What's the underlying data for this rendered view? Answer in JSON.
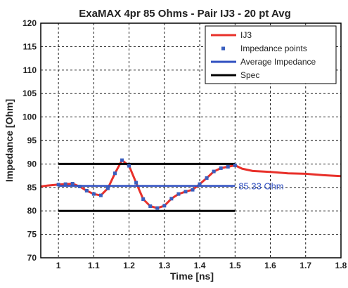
{
  "chart_data": {
    "type": "line",
    "title": "ExaMAX 4pr 85 Ohms  - Pair IJ3 - 20 pt Avg",
    "xlabel": "Time [ns]",
    "ylabel": "Impedance [Ohm]",
    "xlim": [
      0.95,
      1.8
    ],
    "ylim": [
      70,
      120
    ],
    "xticks": [
      "1",
      "1.1",
      "1.2",
      "1.3",
      "1.4",
      "1.5",
      "1.6",
      "1.7",
      "1.8"
    ],
    "yticks": [
      "70",
      "75",
      "80",
      "85",
      "90",
      "95",
      "100",
      "105",
      "110",
      "115",
      "120"
    ],
    "grid": true,
    "legend_position": "top-right",
    "legend": [
      "IJ3",
      "Impedance points",
      "Average Impedance",
      "Spec"
    ],
    "annotation": "85.33 Ohm",
    "colors": {
      "ij3": "#e8302a",
      "points": "#3a5fbf",
      "average": "#2f4fc0",
      "spec": "#000000"
    },
    "series": [
      {
        "name": "IJ3",
        "x": [
          0.95,
          0.97,
          1.0,
          1.02,
          1.04,
          1.06,
          1.08,
          1.1,
          1.12,
          1.14,
          1.16,
          1.18,
          1.2,
          1.22,
          1.24,
          1.26,
          1.28,
          1.3,
          1.32,
          1.34,
          1.36,
          1.38,
          1.4,
          1.42,
          1.44,
          1.46,
          1.48,
          1.5,
          1.52,
          1.55,
          1.6,
          1.65,
          1.7,
          1.75,
          1.8
        ],
        "y": [
          85.2,
          85.4,
          85.6,
          85.7,
          85.8,
          85.2,
          84.3,
          83.6,
          83.3,
          84.8,
          88.0,
          90.8,
          89.6,
          86.0,
          82.5,
          81.0,
          80.6,
          81.1,
          82.6,
          83.6,
          84.1,
          84.5,
          85.7,
          87.0,
          88.4,
          89.1,
          89.4,
          89.7,
          89.0,
          88.5,
          88.3,
          88.0,
          87.9,
          87.6,
          87.4
        ]
      },
      {
        "name": "Impedance points",
        "x": [
          1.0,
          1.02,
          1.04,
          1.06,
          1.08,
          1.1,
          1.12,
          1.14,
          1.16,
          1.18,
          1.2,
          1.22,
          1.24,
          1.26,
          1.28,
          1.3,
          1.32,
          1.34,
          1.36,
          1.38,
          1.4,
          1.42,
          1.44,
          1.46,
          1.48,
          1.5
        ],
        "y": [
          85.6,
          85.7,
          85.8,
          85.2,
          84.3,
          83.6,
          83.3,
          84.8,
          88.0,
          90.8,
          89.6,
          86.0,
          82.5,
          81.0,
          80.6,
          81.1,
          82.6,
          83.6,
          84.1,
          84.5,
          85.7,
          87.0,
          88.4,
          89.1,
          89.4,
          89.7
        ]
      },
      {
        "name": "Average Impedance",
        "x": [
          1.0,
          1.5
        ],
        "y": [
          85.33,
          85.33
        ]
      },
      {
        "name": "Spec",
        "x": [
          1.0,
          1.5
        ],
        "y": [
          90,
          90
        ]
      },
      {
        "name": "Spec",
        "x": [
          1.0,
          1.5
        ],
        "y": [
          80,
          80
        ]
      }
    ]
  }
}
